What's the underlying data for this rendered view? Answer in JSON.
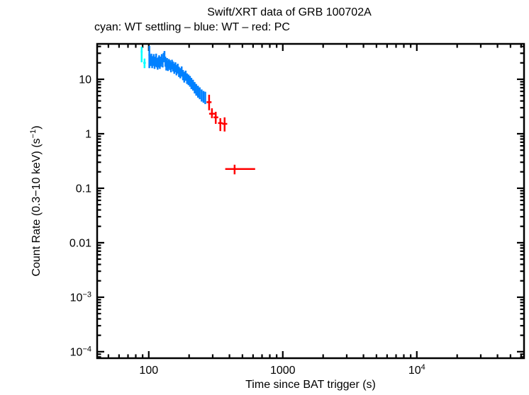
{
  "chart_data": {
    "type": "scatter",
    "title": "Swift/XRT data of GRB 100702A",
    "subtitle": "cyan: WT settling – blue: WT – red: PC",
    "xlabel": "Time since BAT trigger (s)",
    "ylabel_prefix": "Count Rate (0.3−10 keV) (s",
    "ylabel_sup": "−1",
    "ylabel_suffix": ")",
    "axes": {
      "x": {
        "scale": "log",
        "min": 41.2,
        "max": 63100,
        "major_ticks": [
          {
            "v": 100,
            "label": "100"
          },
          {
            "v": 1000,
            "label": "1000"
          },
          {
            "v": 10000,
            "label": "10",
            "sup": "4"
          }
        ]
      },
      "y": {
        "scale": "log",
        "min": 7.6e-05,
        "max": 44.6,
        "major_ticks": [
          {
            "v": 10,
            "label": "10"
          },
          {
            "v": 1,
            "label": "1"
          },
          {
            "v": 0.1,
            "label": "0.1"
          },
          {
            "v": 0.01,
            "label": "0.01"
          },
          {
            "v": 0.001,
            "label": "10",
            "sup": "−3"
          },
          {
            "v": 0.0001,
            "label": "10",
            "sup": "−4"
          }
        ]
      },
      "grid": false,
      "frame_color": "#000000"
    },
    "point_format": [
      "t",
      "dt_lo",
      "dt_hi",
      "rate",
      "drate_lo",
      "drate_hi"
    ],
    "series": [
      {
        "name": "WT settling",
        "color": "#00ffff",
        "points": [
          [
            88.5,
            1.5,
            1.5,
            32.0,
            11.5,
            7.5
          ],
          [
            93.0,
            2.0,
            2.0,
            20.0,
            4.0,
            4.0
          ]
        ]
      },
      {
        "name": "WT",
        "color": "#0080ff",
        "points": [
          [
            101,
            1.5,
            1.5,
            28.0,
            12.0,
            13.0
          ],
          [
            103,
            1.5,
            1.5,
            22.5,
            5.0,
            5.0
          ],
          [
            104.5,
            1.5,
            1.5,
            24.5,
            5.0,
            5.0
          ],
          [
            106,
            1.5,
            1.5,
            20.5,
            4.5,
            4.5
          ],
          [
            107.5,
            1.5,
            1.5,
            22.0,
            4.5,
            4.5
          ],
          [
            109,
            1.5,
            1.5,
            24.0,
            5.0,
            5.0
          ],
          [
            110.5,
            1.5,
            1.5,
            19.5,
            4.0,
            4.0
          ],
          [
            112,
            1.5,
            1.5,
            21.5,
            4.5,
            4.5
          ],
          [
            113.5,
            1.5,
            1.5,
            24.5,
            5.0,
            5.0
          ],
          [
            115,
            1.5,
            1.5,
            20.5,
            4.0,
            4.0
          ],
          [
            116.5,
            1.5,
            1.5,
            19.0,
            4.0,
            4.0
          ],
          [
            118,
            1.5,
            1.5,
            21.0,
            4.5,
            4.5
          ],
          [
            119.5,
            1.5,
            1.5,
            23.0,
            4.5,
            4.5
          ],
          [
            121,
            1.5,
            1.5,
            19.5,
            4.0,
            4.0
          ],
          [
            123,
            1.5,
            1.5,
            21.5,
            4.5,
            4.5
          ],
          [
            125,
            1.5,
            1.5,
            24.0,
            5.0,
            5.0
          ],
          [
            127,
            1.5,
            1.5,
            20.5,
            4.0,
            4.0
          ],
          [
            129,
            1.5,
            1.5,
            25.5,
            5.0,
            5.0
          ],
          [
            131,
            1.5,
            1.5,
            27.5,
            5.5,
            5.5
          ],
          [
            133,
            1.5,
            1.5,
            21.5,
            4.5,
            4.5
          ],
          [
            135,
            1.5,
            1.5,
            18.5,
            4.0,
            4.0
          ],
          [
            137,
            1.5,
            1.5,
            20.5,
            4.0,
            4.0
          ],
          [
            139,
            1.5,
            1.5,
            18.0,
            3.8,
            3.8
          ],
          [
            141.5,
            1.5,
            1.5,
            19.5,
            4.0,
            4.0
          ],
          [
            144,
            1.5,
            1.5,
            18.5,
            3.8,
            3.8
          ],
          [
            146.5,
            1.5,
            1.5,
            17.0,
            3.6,
            3.6
          ],
          [
            149,
            1.5,
            1.5,
            19.0,
            3.8,
            3.8
          ],
          [
            152,
            1.5,
            1.5,
            17.5,
            3.6,
            3.6
          ],
          [
            155,
            1.5,
            1.5,
            16.0,
            3.4,
            3.4
          ],
          [
            158,
            1.5,
            1.5,
            17.0,
            3.5,
            3.5
          ],
          [
            161,
            1.5,
            1.5,
            15.0,
            3.2,
            3.2
          ],
          [
            164.5,
            1.5,
            1.5,
            16.0,
            3.3,
            3.3
          ],
          [
            168,
            1.5,
            1.5,
            14.0,
            3.0,
            3.0
          ],
          [
            172,
            1.5,
            1.5,
            13.2,
            2.8,
            2.8
          ],
          [
            176,
            1.5,
            1.5,
            14.2,
            3.0,
            3.0
          ],
          [
            180,
            1.5,
            1.5,
            12.2,
            2.6,
            2.6
          ],
          [
            184,
            1.5,
            1.5,
            11.2,
            2.5,
            2.5
          ],
          [
            188.5,
            1.5,
            1.5,
            11.9,
            2.5,
            2.5
          ],
          [
            193,
            1.5,
            1.5,
            10.5,
            2.3,
            2.3
          ],
          [
            198,
            1.5,
            1.5,
            10.0,
            2.2,
            2.2
          ],
          [
            203,
            1.5,
            1.5,
            9.4,
            2.1,
            2.1
          ],
          [
            208,
            1.5,
            1.5,
            8.6,
            2.0,
            2.0
          ],
          [
            214,
            1.5,
            1.5,
            8.0,
            1.8,
            1.8
          ],
          [
            220,
            1.5,
            1.5,
            7.2,
            1.7,
            1.7
          ],
          [
            226,
            1.5,
            1.5,
            6.6,
            1.6,
            1.6
          ],
          [
            233,
            1.5,
            1.5,
            6.1,
            1.5,
            1.5
          ],
          [
            240,
            1.5,
            1.5,
            5.7,
            1.4,
            1.4
          ],
          [
            248,
            1.5,
            1.5,
            5.2,
            1.3,
            1.3
          ],
          [
            256,
            1.5,
            1.5,
            4.9,
            1.2,
            1.2
          ],
          [
            264,
            1.5,
            1.5,
            4.7,
            1.2,
            1.2
          ]
        ]
      },
      {
        "name": "PC",
        "color": "#ff0000",
        "points": [
          [
            282,
            12,
            12,
            3.8,
            1.1,
            1.4
          ],
          [
            296,
            14,
            18,
            2.33,
            0.4,
            0.6
          ],
          [
            316,
            12,
            14,
            2.0,
            0.48,
            0.53
          ],
          [
            342,
            13,
            15,
            1.57,
            0.45,
            0.36
          ],
          [
            368,
            15,
            17,
            1.52,
            0.42,
            0.48
          ],
          [
            437,
            65,
            185,
            0.225,
            0.045,
            0.045
          ]
        ]
      }
    ],
    "layout": {
      "legend": "none",
      "marker": "error-bar-cross"
    }
  }
}
